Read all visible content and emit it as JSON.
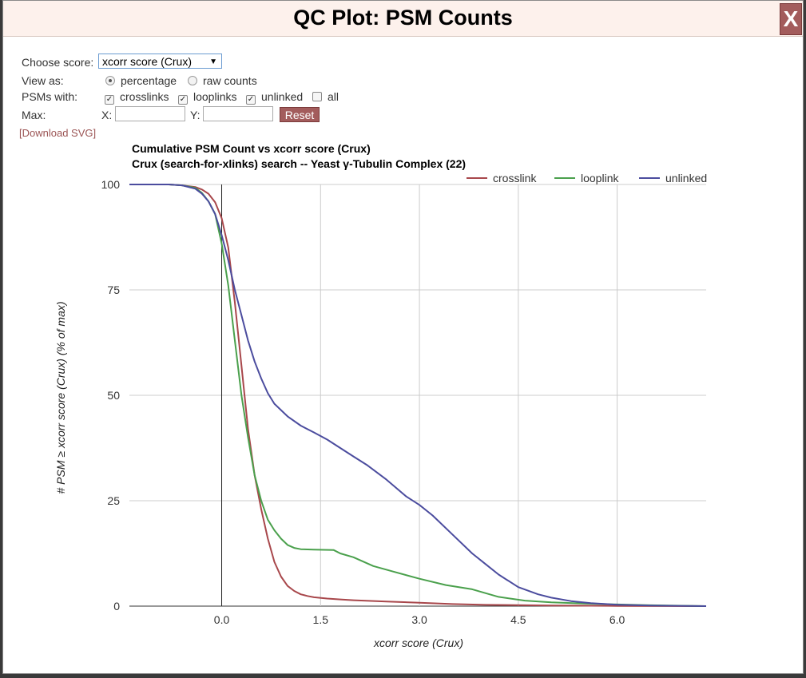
{
  "dialog": {
    "title": "QC Plot: PSM Counts",
    "close_label": "X"
  },
  "controls": {
    "choose_score_label": "Choose score:",
    "score_selected": "xcorr score (Crux)",
    "view_as_label": "View as:",
    "view_options": [
      "percentage",
      "raw counts"
    ],
    "view_selected": "percentage",
    "psms_with_label": "PSMs with:",
    "psm_types": [
      {
        "label": "crosslinks",
        "checked": true
      },
      {
        "label": "looplinks",
        "checked": true
      },
      {
        "label": "unlinked",
        "checked": true
      },
      {
        "label": "all",
        "checked": false
      }
    ],
    "max_label": "Max:",
    "x_label": "X:",
    "y_label": "Y:",
    "x_value": "",
    "y_value": "",
    "reset_label": "Reset",
    "download_label": "[Download SVG]"
  },
  "chart_data": {
    "type": "line",
    "title": "Cumulative PSM Count vs xcorr score (Crux)",
    "subtitle": "Crux (search-for-xlinks) search -- Yeast γ-Tubulin Complex (22)",
    "xlabel": "xcorr score (Crux)",
    "ylabel": "# PSM ≥ xcorr score (Crux) (% of max)",
    "xlim": [
      -1.4,
      7.35
    ],
    "ylim": [
      0,
      100
    ],
    "xticks": [
      "0.0",
      "1.5",
      "3.0",
      "4.5",
      "6.0"
    ],
    "yticks": [
      "0",
      "25",
      "50",
      "75",
      "100"
    ],
    "grid": true,
    "legend_position": "top-right",
    "series": [
      {
        "name": "crosslink",
        "color": "#a8474b",
        "x": [
          -1.4,
          -0.8,
          -0.6,
          -0.4,
          -0.3,
          -0.2,
          -0.1,
          0.0,
          0.1,
          0.2,
          0.3,
          0.4,
          0.5,
          0.6,
          0.7,
          0.8,
          0.9,
          1.0,
          1.1,
          1.2,
          1.3,
          1.4,
          1.6,
          1.8,
          2.0,
          2.5,
          3.0,
          3.5,
          4.0,
          5.0,
          6.0,
          7.35
        ],
        "y": [
          100,
          100,
          99.8,
          99.4,
          98.8,
          97.8,
          95.8,
          92,
          85,
          72,
          57,
          42,
          31,
          23,
          16,
          10.5,
          7,
          4.8,
          3.6,
          2.8,
          2.4,
          2.1,
          1.8,
          1.6,
          1.4,
          1.1,
          0.8,
          0.5,
          0.3,
          0.15,
          0.05,
          0
        ]
      },
      {
        "name": "looplink",
        "color": "#4aa04c",
        "x": [
          -1.4,
          -0.8,
          -0.6,
          -0.4,
          -0.3,
          -0.2,
          -0.1,
          0.0,
          0.1,
          0.2,
          0.3,
          0.4,
          0.5,
          0.6,
          0.7,
          0.8,
          0.9,
          1.0,
          1.1,
          1.2,
          1.4,
          1.7,
          1.8,
          2.0,
          2.3,
          2.6,
          3.0,
          3.4,
          3.8,
          4.2,
          4.6,
          5.0,
          5.5,
          6.0,
          6.5,
          7.35
        ],
        "y": [
          100,
          100,
          99.8,
          99.2,
          98,
          96,
          93,
          86,
          76,
          63,
          50,
          40,
          31,
          25,
          20.5,
          18,
          16,
          14.5,
          13.8,
          13.5,
          13.4,
          13.3,
          12.5,
          11.6,
          9.5,
          8.2,
          6.5,
          5,
          4,
          2.2,
          1.3,
          0.9,
          0.6,
          0.4,
          0.2,
          0
        ]
      },
      {
        "name": "unlinked",
        "color": "#4b4c9e",
        "x": [
          -1.4,
          -0.8,
          -0.6,
          -0.4,
          -0.3,
          -0.2,
          -0.1,
          0.0,
          0.1,
          0.2,
          0.3,
          0.4,
          0.5,
          0.6,
          0.7,
          0.8,
          1.0,
          1.2,
          1.4,
          1.6,
          1.8,
          2.0,
          2.2,
          2.5,
          2.8,
          3.0,
          3.2,
          3.5,
          3.8,
          4.0,
          4.2,
          4.5,
          4.8,
          5.0,
          5.3,
          5.6,
          6.0,
          6.5,
          7.35
        ],
        "y": [
          100,
          100,
          99.8,
          99,
          97.8,
          96,
          93,
          88,
          82,
          75,
          69,
          63,
          58,
          54,
          50.5,
          48,
          45,
          42.8,
          41.2,
          39.5,
          37.5,
          35.5,
          33.5,
          30,
          26,
          24,
          21.5,
          17,
          12.5,
          10,
          7.5,
          4.5,
          2.8,
          2,
          1.2,
          0.7,
          0.35,
          0.15,
          0
        ]
      }
    ]
  }
}
